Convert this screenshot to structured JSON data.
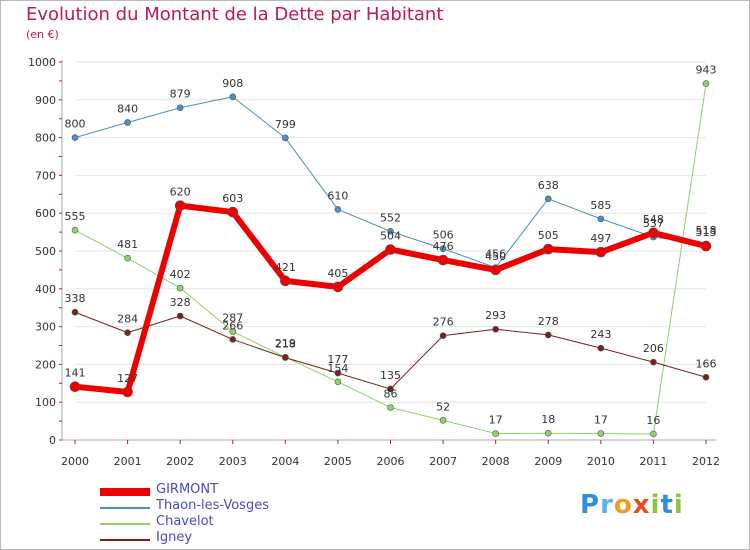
{
  "page": {
    "title": "Evolution du Montant de la Dette par Habitant",
    "subtitle": "(en €)"
  },
  "colors": {
    "title": "#c2165d",
    "axis": "#c2165d",
    "grid": "#e6e6e6"
  },
  "logo": {
    "text": "Proxiti",
    "letters": [
      {
        "ch": "P",
        "color": "#2f8fd8"
      },
      {
        "ch": "r",
        "color": "#58b3e6"
      },
      {
        "ch": "o",
        "color": "#f29b1f"
      },
      {
        "ch": "x",
        "color": "#e64c1f"
      },
      {
        "ch": "i",
        "color": "#8cc63f"
      },
      {
        "ch": "t",
        "color": "#2f8fd8"
      },
      {
        "ch": "i",
        "color": "#8cc63f"
      }
    ]
  },
  "chart_data": {
    "type": "line",
    "title": "Evolution du Montant de la Dette par Habitant",
    "subtitle": "(en €)",
    "x": [
      "2000",
      "2001",
      "2002",
      "2003",
      "2004",
      "2005",
      "2006",
      "2007",
      "2008",
      "2009",
      "2010",
      "2011",
      "2012"
    ],
    "ylim": [
      0,
      1000
    ],
    "yticks": [
      0,
      100,
      200,
      300,
      400,
      500,
      600,
      700,
      800,
      900,
      1000
    ],
    "grid": true,
    "legend": "bottom-left",
    "series": [
      {
        "name": "Thaon-les-Vosges",
        "color": "#4a90c8",
        "stroke_px": 1,
        "values": [
          800,
          840,
          879,
          908,
          799,
          610,
          552,
          506,
          456,
          638,
          585,
          537,
          518
        ]
      },
      {
        "name": "Chavelot",
        "color": "#8fd16a",
        "stroke_px": 1,
        "values": [
          555,
          481,
          402,
          287,
          219,
          154,
          86,
          52,
          17,
          18,
          17,
          16,
          943
        ]
      },
      {
        "name": "Igney",
        "color": "#7a1f1f",
        "stroke_px": 1,
        "values": [
          338,
          284,
          328,
          266,
          218,
          177,
          135,
          276,
          293,
          278,
          243,
          206,
          166
        ]
      },
      {
        "name": "GIRMONT",
        "color": "#ee0000",
        "stroke_px": 6,
        "values": [
          141,
          127,
          620,
          603,
          421,
          405,
          504,
          476,
          450,
          505,
          497,
          548,
          513
        ]
      }
    ]
  }
}
